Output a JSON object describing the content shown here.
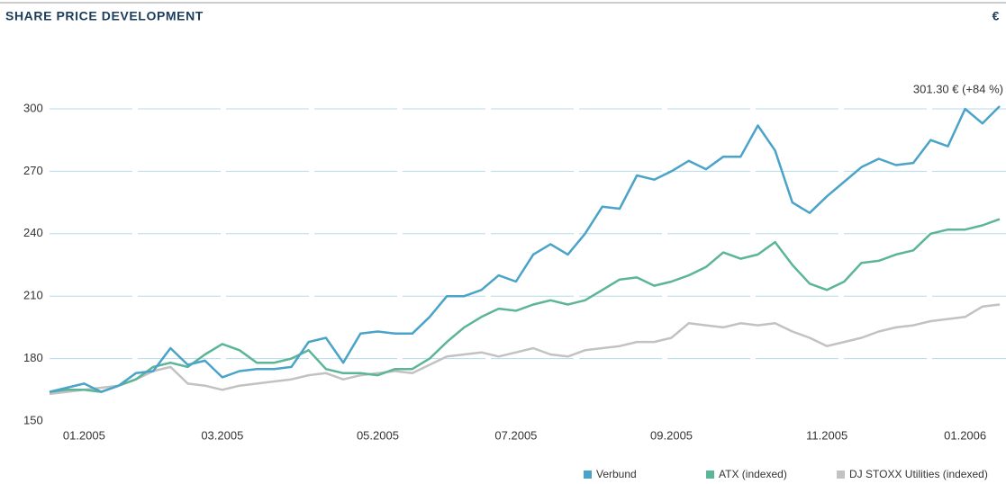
{
  "chart_data": {
    "type": "line",
    "title": "SHARE PRICE DEVELOPMENT",
    "unit_label": "€",
    "annotation": "301.30 € (+84 %)",
    "categories": [
      null,
      null,
      "01.2005",
      null,
      null,
      null,
      null,
      null,
      null,
      null,
      "03.2005",
      null,
      null,
      null,
      null,
      null,
      null,
      null,
      null,
      "05.2005",
      null,
      null,
      null,
      null,
      null,
      null,
      null,
      "07.2005",
      null,
      null,
      null,
      null,
      null,
      null,
      null,
      null,
      "09.2005",
      null,
      null,
      null,
      null,
      null,
      null,
      null,
      null,
      "11.2005",
      null,
      null,
      null,
      null,
      null,
      null,
      null,
      "01.2006",
      null,
      null
    ],
    "series": [
      {
        "name": "Verbund",
        "color": "#4aa3c8",
        "values": [
          164,
          166,
          168,
          164,
          167,
          173,
          174,
          185,
          177,
          179,
          171,
          174,
          175,
          175,
          176,
          188,
          190,
          178,
          192,
          193,
          192,
          192,
          200,
          210,
          210,
          213,
          220,
          217,
          230,
          235,
          230,
          240,
          253,
          252,
          268,
          266,
          270,
          275,
          271,
          277,
          277,
          292,
          280,
          255,
          250,
          258,
          265,
          272,
          276,
          273,
          274,
          285,
          282,
          300,
          293,
          301.3
        ]
      },
      {
        "name": "ATX (indexed)",
        "color": "#5bb596",
        "values": [
          164,
          165,
          165,
          164,
          167,
          170,
          176,
          178,
          176,
          182,
          187,
          184,
          178,
          178,
          180,
          184,
          175,
          173,
          173,
          172,
          175,
          175,
          180,
          188,
          195,
          200,
          204,
          203,
          206,
          208,
          206,
          208,
          213,
          218,
          219,
          215,
          217,
          220,
          224,
          231,
          228,
          230,
          236,
          225,
          216,
          213,
          217,
          226,
          227,
          230,
          232,
          240,
          242,
          242,
          244,
          247
        ]
      },
      {
        "name": "DJ STOXX Utilities (indexed)",
        "color": "#c2c2c2",
        "values": [
          163,
          164,
          165,
          166,
          167,
          170,
          174,
          176,
          168,
          167,
          165,
          167,
          168,
          169,
          170,
          172,
          173,
          170,
          172,
          173,
          174,
          173,
          177,
          181,
          182,
          183,
          181,
          183,
          185,
          182,
          181,
          184,
          185,
          186,
          188,
          188,
          190,
          197,
          196,
          195,
          197,
          196,
          197,
          193,
          190,
          186,
          188,
          190,
          193,
          195,
          196,
          198,
          199,
          200,
          205,
          206
        ]
      }
    ],
    "ylim": [
      150,
      315
    ],
    "yticks": [
      150,
      180,
      210,
      240,
      270,
      300
    ],
    "grid": true,
    "legend": "bottom-right"
  }
}
